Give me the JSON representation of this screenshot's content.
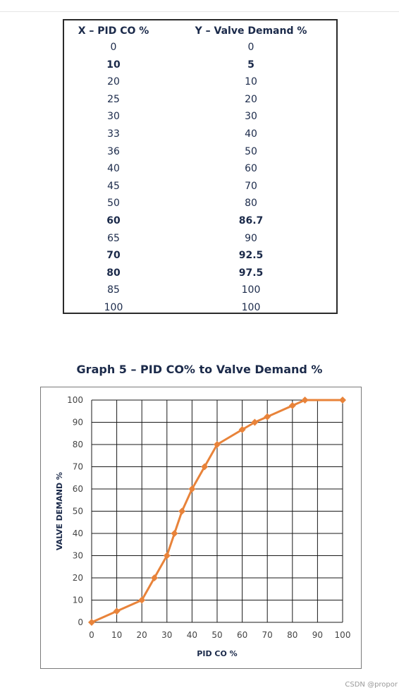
{
  "table": {
    "headers": [
      "X – PID CO %",
      "Y – Valve Demand %"
    ],
    "rows": [
      {
        "x": "0",
        "y": "0",
        "bold": false
      },
      {
        "x": "10",
        "y": "5",
        "bold": true
      },
      {
        "x": "20",
        "y": "10",
        "bold": false
      },
      {
        "x": "25",
        "y": "20",
        "bold": false
      },
      {
        "x": "30",
        "y": "30",
        "bold": false
      },
      {
        "x": "33",
        "y": "40",
        "bold": false
      },
      {
        "x": "36",
        "y": "50",
        "bold": false
      },
      {
        "x": "40",
        "y": "60",
        "bold": false
      },
      {
        "x": "45",
        "y": "70",
        "bold": false
      },
      {
        "x": "50",
        "y": "80",
        "bold": false
      },
      {
        "x": "60",
        "y": "86.7",
        "bold": true
      },
      {
        "x": "65",
        "y": "90",
        "bold": false
      },
      {
        "x": "70",
        "y": "92.5",
        "bold": true
      },
      {
        "x": "80",
        "y": "97.5",
        "bold": true
      },
      {
        "x": "85",
        "y": "100",
        "bold": false
      },
      {
        "x": "100",
        "y": "100",
        "bold": false
      }
    ]
  },
  "chart_data": {
    "type": "line",
    "title": "Graph 5 – PID CO% to Valve Demand %",
    "xlabel": "PID CO %",
    "ylabel": "VALVE DEMAND %",
    "xlim": [
      0,
      100
    ],
    "ylim": [
      0,
      100
    ],
    "xticks": [
      0,
      10,
      20,
      30,
      40,
      50,
      60,
      70,
      80,
      90,
      100
    ],
    "yticks": [
      0,
      10,
      20,
      30,
      40,
      50,
      60,
      70,
      80,
      90,
      100
    ],
    "grid": true,
    "series": [
      {
        "color": "#e8833a",
        "x": [
          0,
          10,
          20,
          25,
          30,
          33,
          36,
          40,
          45,
          50,
          60,
          65,
          70,
          80,
          85,
          100
        ],
        "y": [
          0,
          5,
          10,
          20,
          30,
          40,
          50,
          60,
          70,
          80,
          86.7,
          90,
          92.5,
          97.5,
          100,
          100
        ]
      }
    ]
  },
  "watermark": "CSDN @propor"
}
